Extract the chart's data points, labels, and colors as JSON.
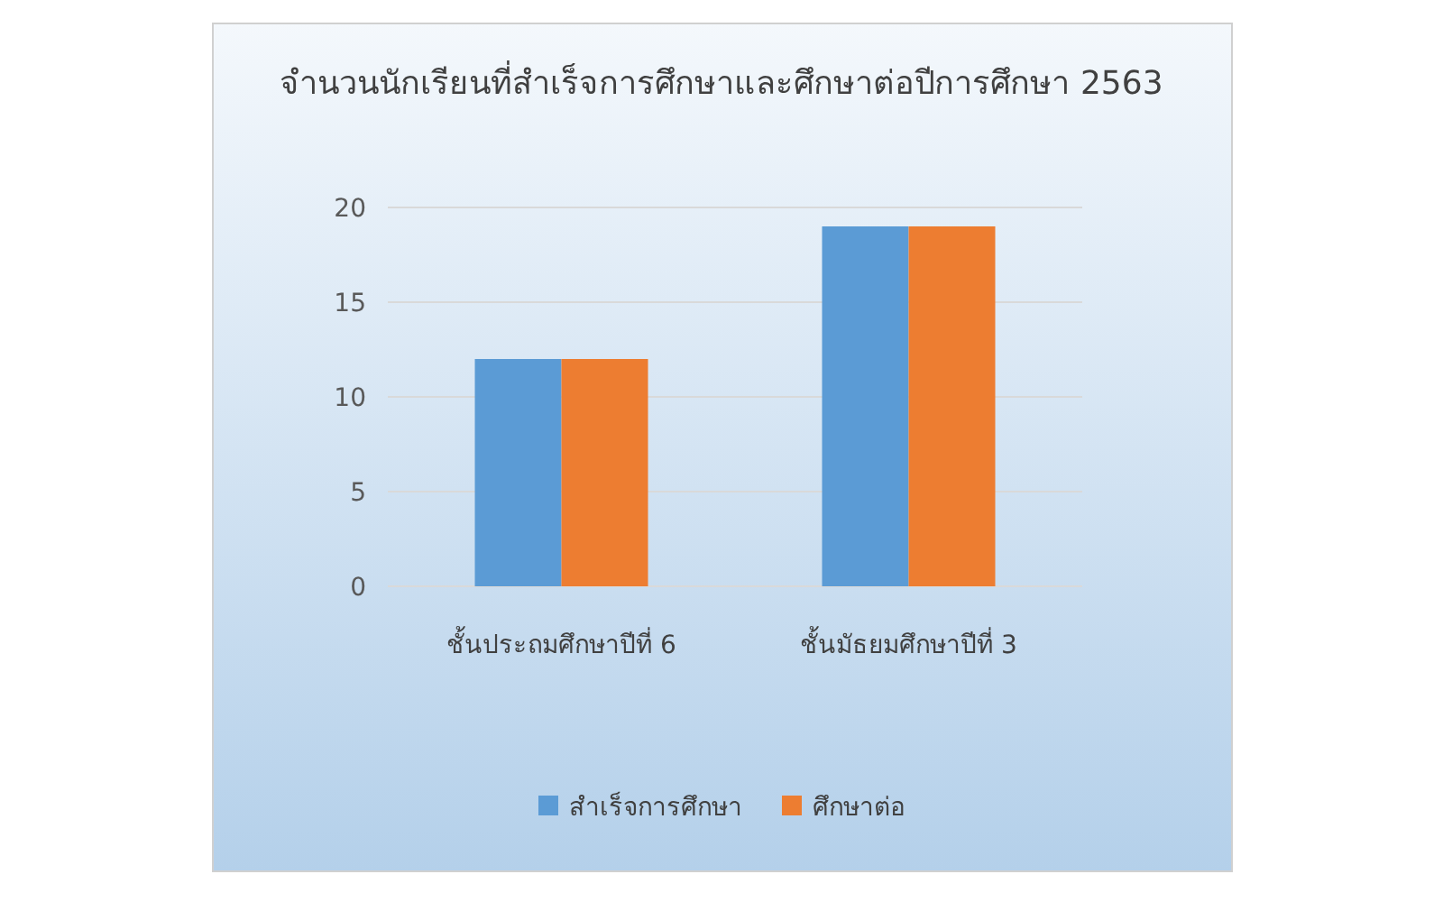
{
  "chart_data": {
    "type": "bar",
    "title": "จำนวนนักเรียนที่สำเร็จการศึกษาและศึกษาต่อปีการศึกษา 2563",
    "categories": [
      "ชั้นประถมศึกษาปีที่ 6",
      "ชั้นมัธยมศึกษาปีที่ 3"
    ],
    "series": [
      {
        "name": "สำเร็จการศึกษา",
        "color": "#5b9bd5",
        "values": [
          12,
          19
        ]
      },
      {
        "name": "ศึกษาต่อ",
        "color": "#ed7d31",
        "values": [
          12,
          19
        ]
      }
    ],
    "ylim": [
      0,
      20
    ],
    "yticks": [
      0,
      5,
      10,
      15,
      20
    ],
    "grid": "y",
    "legend": "bottom"
  }
}
